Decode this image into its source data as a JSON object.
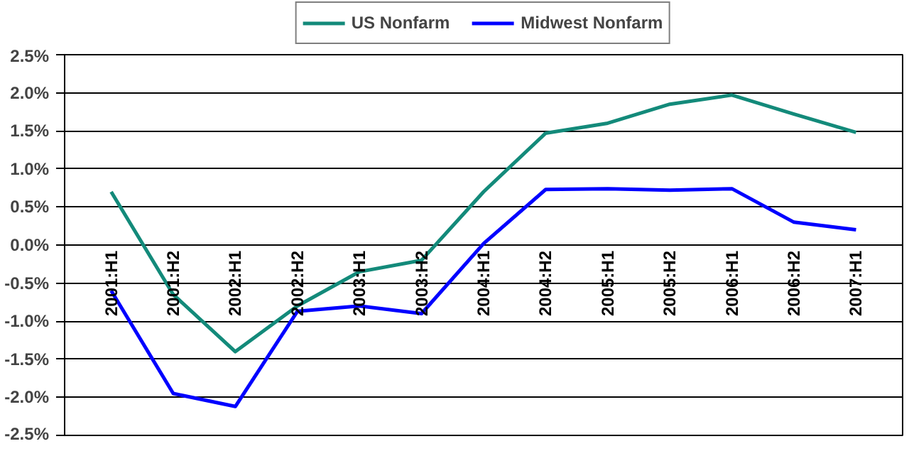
{
  "chart_data": {
    "type": "line",
    "categories": [
      "2001:H1",
      "2001:H2",
      "2002:H1",
      "2002:H2",
      "2003:H1",
      "2003:H2",
      "2004:H1",
      "2004:H2",
      "2005:H1",
      "2005:H2",
      "2006:H1",
      "2006:H2",
      "2007:H1"
    ],
    "series": [
      {
        "name": "US Nonfarm",
        "color": "#138a7a",
        "values": [
          0.7,
          -0.65,
          -1.4,
          -0.8,
          -0.35,
          -0.2,
          0.7,
          1.47,
          1.6,
          1.85,
          1.97,
          1.72,
          1.48
        ]
      },
      {
        "name": "Midwest Nonfarm",
        "color": "#0000ff",
        "values": [
          -0.6,
          -1.95,
          -2.12,
          -0.87,
          -0.8,
          -0.9,
          0.02,
          0.73,
          0.74,
          0.72,
          0.74,
          0.3,
          0.2
        ]
      }
    ],
    "ylim": [
      -2.5,
      2.5
    ],
    "yticks": [
      {
        "value": -2.5,
        "label": "-2.5%"
      },
      {
        "value": -2,
        "label": "-2.0%"
      },
      {
        "value": -1.5,
        "label": "-1.5%"
      },
      {
        "value": -1,
        "label": "-1.0%"
      },
      {
        "value": -0.5,
        "label": "-0.5%"
      },
      {
        "value": 0,
        "label": "0.0%"
      },
      {
        "value": 0.5,
        "label": "0.5%"
      },
      {
        "value": 1,
        "label": "1.0%"
      },
      {
        "value": 1.5,
        "label": "1.5%"
      },
      {
        "value": 2,
        "label": "2.0%"
      },
      {
        "value": 2.5,
        "label": "2.5%"
      }
    ],
    "grid": "y",
    "legend": "top",
    "marker": "none",
    "line_style": "solid"
  }
}
